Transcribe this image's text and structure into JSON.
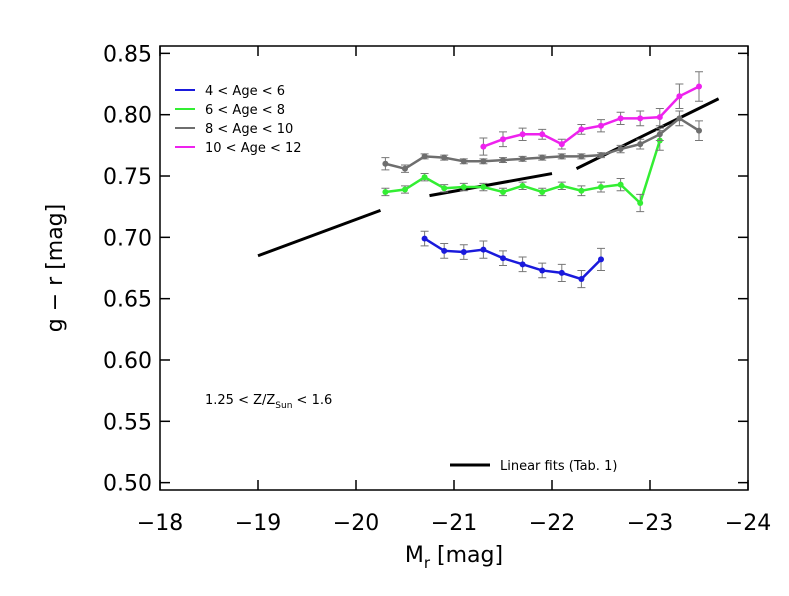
{
  "chart_data": {
    "type": "line",
    "xlabel": {
      "main": "M",
      "sub": "r",
      "tail": " [mag]"
    },
    "ylabel": "g − r [mag]",
    "annotation": {
      "main": "1.25 < Z/Z",
      "sub": "Sun",
      "tail": " < 1.6"
    },
    "xlim": [
      -18,
      -24
    ],
    "ylim": [
      0.494,
      0.856
    ],
    "xticks": [
      {
        "value": -18,
        "label": "−18"
      },
      {
        "value": -19,
        "label": "−19"
      },
      {
        "value": -20,
        "label": "−20"
      },
      {
        "value": -21,
        "label": "−21"
      },
      {
        "value": -22,
        "label": "−22"
      },
      {
        "value": -23,
        "label": "−23"
      },
      {
        "value": -24,
        "label": "−24"
      }
    ],
    "yticks": [
      {
        "value": 0.5,
        "label": "0.50"
      },
      0.55,
      {
        "value": 0.6,
        "label": "0.60"
      },
      0.65,
      {
        "value": 0.7,
        "label": "0.70"
      },
      0.75,
      {
        "value": 0.8,
        "label": "0.80"
      },
      0.85
    ],
    "series": [
      {
        "name": "4 < Age < 6",
        "color": "#1a1adc",
        "x": [
          -20.7,
          -20.9,
          -21.1,
          -21.3,
          -21.5,
          -21.7,
          -21.9,
          -22.1,
          -22.3,
          -22.5
        ],
        "values": [
          0.699,
          0.689,
          0.688,
          0.69,
          0.683,
          0.678,
          0.673,
          0.671,
          0.666,
          0.682
        ],
        "errors": [
          0.006,
          0.006,
          0.006,
          0.007,
          0.006,
          0.006,
          0.006,
          0.007,
          0.007,
          0.009
        ]
      },
      {
        "name": "6 < Age < 8",
        "color": "#33ee33",
        "x": [
          -20.3,
          -20.5,
          -20.7,
          -20.9,
          -21.1,
          -21.3,
          -21.5,
          -21.7,
          -21.9,
          -22.1,
          -22.3,
          -22.5,
          -22.7,
          -22.9,
          -23.1
        ],
        "values": [
          0.737,
          0.739,
          0.749,
          0.74,
          0.741,
          0.741,
          0.737,
          0.742,
          0.737,
          0.742,
          0.738,
          0.741,
          0.743,
          0.728,
          0.779
        ],
        "errors": [
          0.003,
          0.003,
          0.003,
          0.003,
          0.003,
          0.003,
          0.003,
          0.003,
          0.003,
          0.003,
          0.004,
          0.004,
          0.005,
          0.007,
          0.008
        ]
      },
      {
        "name": "8 < Age < 10",
        "color": "#6e6e6e",
        "x": [
          -20.3,
          -20.5,
          -20.7,
          -20.9,
          -21.1,
          -21.3,
          -21.5,
          -21.7,
          -21.9,
          -22.1,
          -22.3,
          -22.5,
          -22.7,
          -22.9,
          -23.1,
          -23.3,
          -23.5
        ],
        "values": [
          0.76,
          0.756,
          0.766,
          0.765,
          0.762,
          0.762,
          0.763,
          0.764,
          0.765,
          0.766,
          0.766,
          0.767,
          0.772,
          0.776,
          0.784,
          0.797,
          0.787
        ],
        "errors": [
          0.005,
          0.003,
          0.002,
          0.002,
          0.002,
          0.002,
          0.002,
          0.002,
          0.002,
          0.002,
          0.002,
          0.002,
          0.003,
          0.004,
          0.005,
          0.006,
          0.008
        ]
      },
      {
        "name": "10 < Age < 12",
        "color": "#ee22ee",
        "x": [
          -21.3,
          -21.5,
          -21.7,
          -21.9,
          -22.1,
          -22.3,
          -22.5,
          -22.7,
          -22.9,
          -23.1,
          -23.3,
          -23.5
        ],
        "values": [
          0.774,
          0.78,
          0.784,
          0.784,
          0.776,
          0.788,
          0.791,
          0.797,
          0.797,
          0.798,
          0.815,
          0.823
        ],
        "errors": [
          0.007,
          0.006,
          0.005,
          0.004,
          0.004,
          0.004,
          0.005,
          0.005,
          0.006,
          0.007,
          0.01,
          0.012
        ]
      }
    ],
    "fit_lines": {
      "name": "Linear fits (Tab. 1)",
      "color": "#000000",
      "segments": [
        {
          "x": [
            -19,
            -20.25
          ],
          "values": [
            0.685,
            0.722
          ]
        },
        {
          "x": [
            -20.75,
            -22
          ],
          "values": [
            0.734,
            0.752
          ]
        },
        {
          "x": [
            -22.25,
            -23.7
          ],
          "values": [
            0.756,
            0.813
          ]
        }
      ]
    }
  }
}
